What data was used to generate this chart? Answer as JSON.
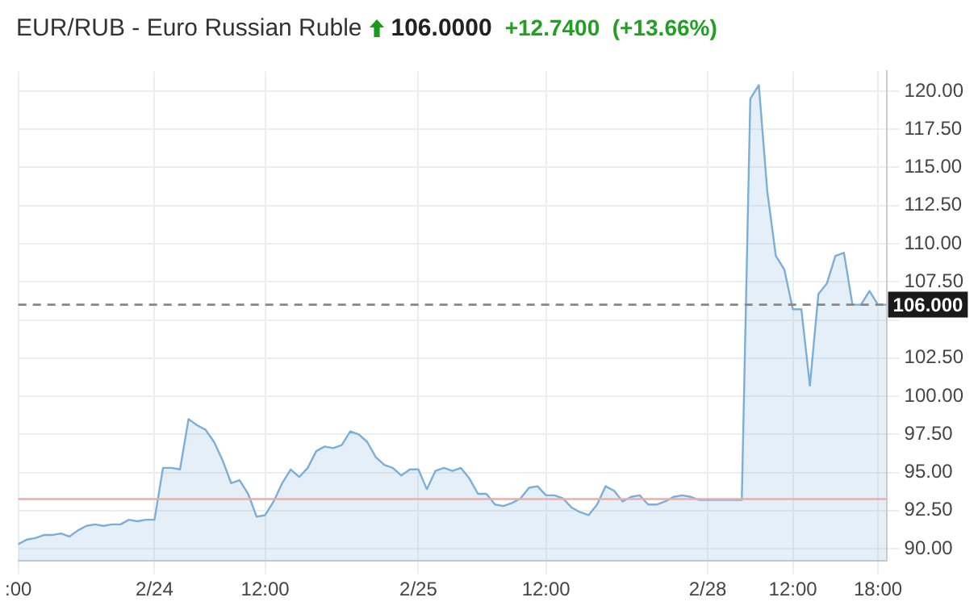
{
  "chart_data": {
    "type": "area",
    "title": "EUR/RUB - Euro Russian Ruble",
    "subtitle": "106.0000",
    "annotations": [
      "+12.7400  (+13.66%)"
    ],
    "categories": [
      ":00",
      null,
      null,
      null,
      null,
      null,
      null,
      null,
      null,
      null,
      null,
      null,
      null,
      null,
      null,
      null,
      "2/24",
      null,
      null,
      null,
      null,
      null,
      null,
      null,
      null,
      null,
      null,
      null,
      null,
      "12:00",
      null,
      null,
      null,
      null,
      null,
      null,
      null,
      null,
      null,
      null,
      null,
      null,
      null,
      null,
      null,
      null,
      null,
      "2/25",
      null,
      null,
      null,
      null,
      null,
      null,
      null,
      null,
      null,
      null,
      null,
      null,
      null,
      null,
      "12:00",
      null,
      null,
      null,
      null,
      null,
      null,
      null,
      null,
      null,
      null,
      null,
      null,
      null,
      null,
      null,
      null,
      null,
      null,
      "2/28",
      null,
      null,
      null,
      null,
      null,
      null,
      null,
      null,
      null,
      "12:00",
      null,
      null,
      null,
      null,
      null,
      null,
      null,
      null,
      null,
      "18:00",
      null
    ],
    "series": [
      {
        "color": "#7bafd9",
        "values": [
          90.3,
          90.6,
          90.7,
          90.9,
          90.9,
          91.0,
          90.8,
          91.2,
          91.5,
          91.6,
          91.5,
          91.6,
          91.6,
          91.9,
          91.8,
          91.9,
          91.9,
          95.3,
          95.3,
          95.2,
          98.5,
          98.1,
          97.8,
          97.0,
          95.8,
          94.3,
          94.5,
          93.6,
          92.1,
          92.2,
          93.1,
          94.3,
          95.2,
          94.7,
          95.3,
          96.4,
          96.7,
          96.6,
          96.8,
          97.7,
          97.5,
          97.0,
          96.0,
          95.5,
          95.3,
          94.8,
          95.2,
          95.2,
          93.9,
          95.1,
          95.3,
          95.1,
          95.3,
          94.6,
          93.6,
          93.6,
          92.9,
          92.8,
          93.0,
          93.3,
          94.0,
          94.1,
          93.5,
          93.5,
          93.3,
          92.7,
          92.4,
          92.2,
          92.9,
          94.1,
          93.8,
          93.1,
          93.4,
          93.5,
          92.9,
          92.9,
          93.1,
          93.4,
          93.5,
          93.4,
          93.2,
          93.2,
          93.2,
          93.2,
          93.2,
          93.2,
          119.5,
          120.4,
          113.4,
          109.2,
          108.3,
          105.7,
          105.7,
          100.7,
          106.7,
          107.4,
          109.2,
          109.4,
          106.0,
          106.0,
          106.9,
          106.0,
          106.0
        ]
      }
    ],
    "ylim": [
      89.2,
      121.3
    ],
    "yticks": [
      {
        "value": 90,
        "label": "90.00"
      },
      {
        "value": 92.5,
        "label": "92.50"
      },
      {
        "value": 95,
        "label": "95.00"
      },
      {
        "value": 97.5,
        "label": "97.50"
      },
      {
        "value": 100,
        "label": "100.00"
      },
      {
        "value": 102.5,
        "label": "102.50"
      },
      {
        "value": 105,
        "label": null
      },
      {
        "value": 107.5,
        "label": "107.50"
      },
      {
        "value": 110,
        "label": "110.00"
      },
      {
        "value": 112.5,
        "label": "112.50"
      },
      {
        "value": 115,
        "label": "115.00"
      },
      {
        "value": 117.5,
        "label": "117.50"
      },
      {
        "value": 120,
        "label": "120.00"
      }
    ],
    "ref_lines": [
      {
        "axis": "y",
        "value": 106.0,
        "label": "106.000",
        "color": "#888888",
        "line_style": "dashed"
      },
      {
        "axis": "y",
        "value": 93.26,
        "color": "#f4a9a9",
        "line_style": "solid"
      }
    ],
    "grid": true,
    "legend": false
  }
}
